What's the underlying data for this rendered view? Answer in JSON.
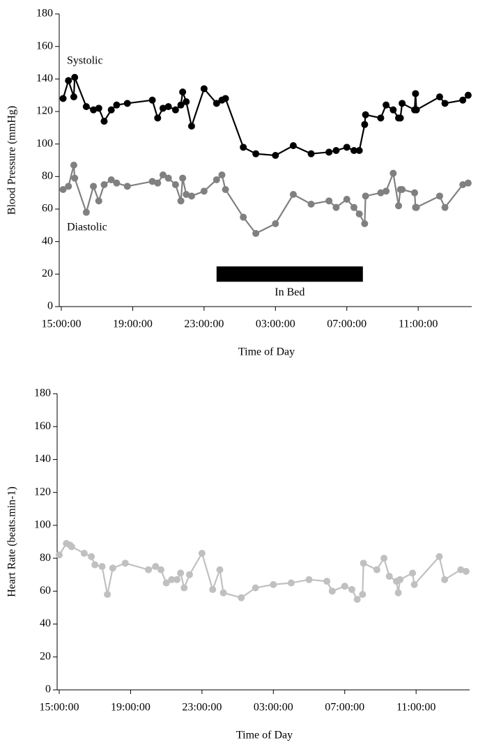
{
  "chart_data": [
    {
      "type": "line",
      "ylabel": "Blood Pressure (mmHg)",
      "xlabel": "Time of Day",
      "x": [
        15.1,
        15.4,
        15.7,
        15.75,
        16.4,
        16.8,
        17.1,
        17.4,
        17.8,
        18.1,
        18.7,
        20.1,
        20.4,
        20.7,
        21.0,
        21.4,
        21.7,
        21.8,
        22.0,
        22.3,
        23.0,
        23.7,
        24.0,
        24.2,
        25.2,
        25.9,
        27.0,
        28.0,
        29.0,
        30.0,
        30.4,
        31.0,
        31.4,
        31.7,
        32.0,
        32.05,
        32.9,
        33.2,
        33.6,
        33.9,
        34.0,
        34.1,
        34.8,
        34.85,
        34.9,
        36.2,
        36.5,
        37.5,
        37.8
      ],
      "series": [
        {
          "name": "Systolic",
          "color": "#000000",
          "values": [
            128,
            139,
            129,
            141,
            123,
            121,
            122,
            114,
            121,
            124,
            125,
            127,
            116,
            122,
            123,
            121,
            124,
            132,
            126,
            111,
            134,
            125,
            127,
            128,
            98,
            94,
            93,
            99,
            94,
            95,
            96,
            98,
            96,
            96,
            112,
            118,
            116,
            124,
            121,
            116,
            116,
            125,
            121,
            131,
            121,
            129,
            125,
            127,
            130
          ]
        },
        {
          "name": "Diastolic",
          "color": "#808080",
          "values": [
            72,
            74,
            87,
            79,
            58,
            74,
            65,
            75,
            78,
            76,
            74,
            77,
            76,
            81,
            79,
            75,
            65,
            79,
            69,
            68,
            71,
            78,
            81,
            72,
            55,
            45,
            51,
            69,
            63,
            65,
            61,
            66,
            61,
            57,
            51,
            68,
            70,
            71,
            82,
            62,
            72,
            72,
            70,
            61,
            61,
            68,
            61,
            75,
            76
          ]
        }
      ],
      "annotations": [
        {
          "text": "In Bed",
          "x_start": 23.7,
          "x_end": 31.9,
          "y": 20
        }
      ],
      "xlim": [
        15,
        38
      ],
      "ylim": [
        0,
        180
      ],
      "xticks": [
        {
          "value": 15,
          "label": "15:00:00"
        },
        {
          "value": 19,
          "label": "19:00:00"
        },
        {
          "value": 23,
          "label": "23:00:00"
        },
        {
          "value": 27,
          "label": "03:00:00"
        },
        {
          "value": 31,
          "label": "07:00:00"
        },
        {
          "value": 35,
          "label": "11:00:00"
        }
      ],
      "yticks": [
        0,
        20,
        40,
        60,
        80,
        100,
        120,
        140,
        160,
        180
      ]
    },
    {
      "type": "line",
      "ylabel": "Heart Rate (beats.min-1)",
      "xlabel": "Time of Day",
      "x": [
        15.0,
        15.4,
        15.6,
        15.7,
        16.4,
        16.8,
        17.0,
        17.4,
        17.7,
        18.0,
        18.7,
        20.0,
        20.4,
        20.7,
        21.0,
        21.3,
        21.6,
        21.8,
        22.0,
        22.3,
        23.0,
        23.6,
        24.0,
        24.2,
        25.2,
        26.0,
        27.0,
        28.0,
        29.0,
        30.0,
        30.3,
        31.0,
        31.4,
        31.7,
        32.0,
        32.05,
        32.8,
        33.2,
        33.5,
        33.9,
        34.0,
        34.1,
        34.8,
        34.9,
        36.3,
        36.6,
        37.5,
        37.8
      ],
      "series": [
        {
          "color": "#c0c0c0",
          "values": [
            82,
            89,
            88,
            87,
            83,
            81,
            76,
            75,
            58,
            74,
            77,
            73,
            75,
            73,
            65,
            67,
            67,
            71,
            62,
            70,
            83,
            61,
            73,
            59,
            56,
            62,
            64,
            65,
            67,
            66,
            60,
            63,
            61,
            55,
            58,
            77,
            73,
            80,
            69,
            66,
            59,
            67,
            71,
            64,
            81,
            67,
            73,
            72
          ]
        }
      ],
      "xlim": [
        15,
        38
      ],
      "ylim": [
        0,
        180
      ],
      "xticks": [
        {
          "value": 15,
          "label": "15:00:00"
        },
        {
          "value": 19,
          "label": "19:00:00"
        },
        {
          "value": 23,
          "label": "23:00:00"
        },
        {
          "value": 27,
          "label": "03:00:00"
        },
        {
          "value": 31,
          "label": "07:00:00"
        },
        {
          "value": 35,
          "label": "11:00:00"
        }
      ],
      "yticks": [
        0,
        20,
        40,
        60,
        80,
        100,
        120,
        140,
        160,
        180
      ]
    }
  ]
}
